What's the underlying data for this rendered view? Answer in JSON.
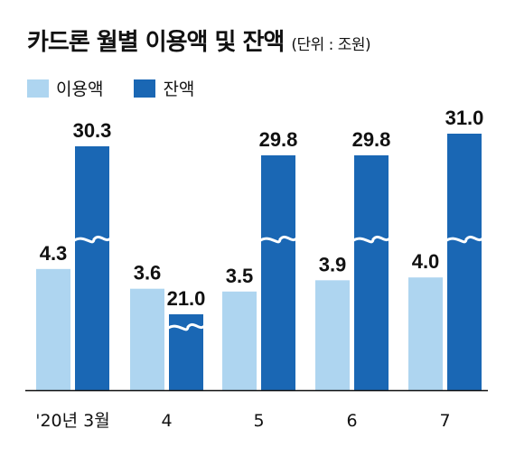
{
  "title": "카드론 월별 이용액 및 잔액",
  "unit": "(단위 : 조원)",
  "colors": {
    "usage": "#aed5f0",
    "balance": "#1a67b4",
    "axis": "#111111"
  },
  "chart_data": {
    "type": "bar",
    "title": "카드론 월별 이용액 및 잔액",
    "unit": "(단위 : 조원)",
    "categories": [
      "'20년 3월",
      "4",
      "5",
      "6",
      "7"
    ],
    "series": [
      {
        "name": "이용액",
        "values": [
          4.3,
          3.6,
          3.5,
          3.9,
          4.0
        ],
        "labels": [
          "4.3",
          "3.6",
          "3.5",
          "3.9",
          "4.0"
        ]
      },
      {
        "name": "잔액",
        "values": [
          30.3,
          21.0,
          29.8,
          29.8,
          31.0
        ],
        "labels": [
          "30.3",
          "21.0",
          "29.8",
          "29.8",
          "31.0"
        ]
      }
    ],
    "axis_break": true,
    "grid": false,
    "legend": "top-left"
  }
}
